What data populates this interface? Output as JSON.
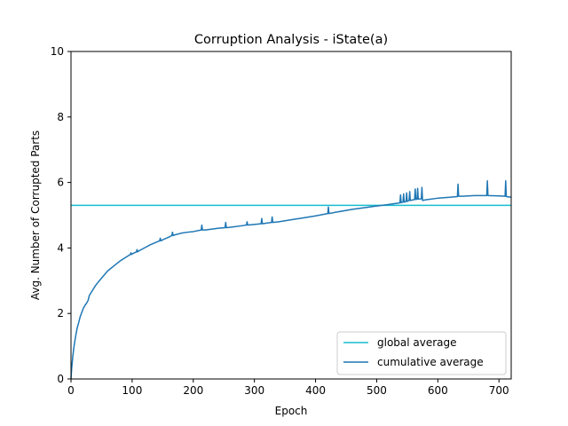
{
  "chart_data": {
    "type": "line",
    "title": "Corruption Analysis - iState(a)",
    "xlabel": "Epoch",
    "ylabel": "Avg. Number of Corrupted Parts",
    "xlim": [
      0,
      720
    ],
    "ylim": [
      0,
      10
    ],
    "xticks": [
      0,
      100,
      200,
      300,
      400,
      500,
      600,
      700
    ],
    "yticks": [
      0,
      2,
      4,
      6,
      8,
      10
    ],
    "grid": false,
    "legend_position": "lower-right",
    "series": [
      {
        "name": "global average",
        "color": "#17becf",
        "style": "horizontal-line",
        "y": 5.3
      },
      {
        "name": "cumulative average",
        "color": "#1f77b4",
        "x": [
          0,
          1,
          3,
          5,
          8,
          10,
          13,
          15,
          18,
          20,
          23,
          25,
          28,
          30,
          35,
          40,
          45,
          50,
          60,
          70,
          80,
          90,
          97,
          98,
          99,
          100,
          107,
          108,
          109,
          110,
          120,
          130,
          145,
          146,
          147,
          150,
          160,
          165,
          166,
          167,
          170,
          180,
          190,
          200,
          213,
          214,
          215,
          220,
          240,
          252,
          253,
          254,
          260,
          280,
          287,
          288,
          289,
          300,
          311,
          312,
          313,
          320,
          328,
          329,
          330,
          340,
          360,
          380,
          400,
          420,
          421,
          422,
          430,
          460,
          500,
          520,
          535,
          538,
          539,
          540,
          543,
          544,
          545,
          548,
          549,
          550,
          553,
          554,
          555,
          560,
          562,
          563,
          564,
          566,
          567,
          568,
          573,
          574,
          575,
          580,
          600,
          620,
          632,
          633,
          634,
          640,
          660,
          680,
          681,
          682,
          700,
          710,
          711,
          712,
          720
        ],
        "y": [
          0,
          0.3,
          0.7,
          1.0,
          1.35,
          1.55,
          1.75,
          1.9,
          2.05,
          2.15,
          2.25,
          2.3,
          2.4,
          2.55,
          2.7,
          2.85,
          2.97,
          3.08,
          3.3,
          3.45,
          3.6,
          3.72,
          3.8,
          3.85,
          3.8,
          3.82,
          3.88,
          3.95,
          3.88,
          3.9,
          4.0,
          4.1,
          4.22,
          4.3,
          4.22,
          4.25,
          4.33,
          4.38,
          4.48,
          4.38,
          4.4,
          4.45,
          4.48,
          4.5,
          4.55,
          4.7,
          4.55,
          4.55,
          4.6,
          4.62,
          4.78,
          4.62,
          4.63,
          4.68,
          4.7,
          4.8,
          4.7,
          4.72,
          4.74,
          4.9,
          4.74,
          4.76,
          4.78,
          4.95,
          4.78,
          4.8,
          4.86,
          4.92,
          4.98,
          5.05,
          5.25,
          5.05,
          5.08,
          5.18,
          5.28,
          5.33,
          5.37,
          5.38,
          5.62,
          5.38,
          5.4,
          5.65,
          5.4,
          5.42,
          5.68,
          5.42,
          5.45,
          5.72,
          5.45,
          5.47,
          5.48,
          5.8,
          5.48,
          5.49,
          5.82,
          5.49,
          5.5,
          5.85,
          5.45,
          5.47,
          5.52,
          5.55,
          5.57,
          5.95,
          5.58,
          5.58,
          5.6,
          5.6,
          6.05,
          5.6,
          5.59,
          5.58,
          6.05,
          5.57,
          5.55
        ]
      }
    ]
  }
}
